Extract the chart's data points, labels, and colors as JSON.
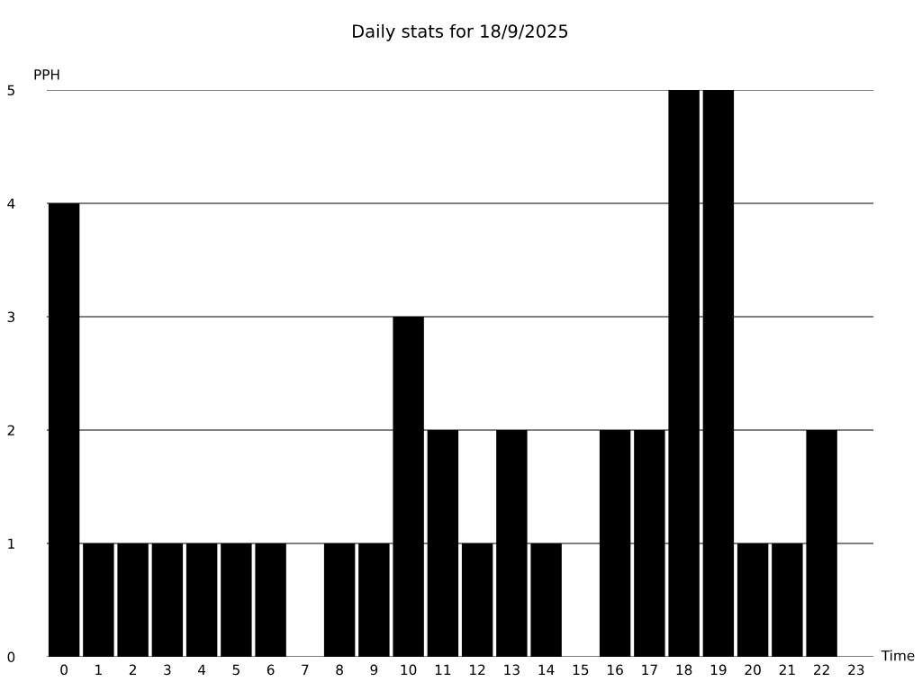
{
  "chart_data": {
    "type": "bar",
    "title": "Daily stats for 18/9/2025",
    "xlabel": "Time",
    "ylabel": "PPH",
    "categories": [
      "0",
      "1",
      "2",
      "3",
      "4",
      "5",
      "6",
      "7",
      "8",
      "9",
      "10",
      "11",
      "12",
      "13",
      "14",
      "15",
      "16",
      "17",
      "18",
      "19",
      "20",
      "21",
      "22",
      "23"
    ],
    "values": [
      4,
      1,
      1,
      1,
      1,
      1,
      1,
      0,
      1,
      1,
      3,
      2,
      1,
      2,
      1,
      0,
      2,
      2,
      5,
      5,
      1,
      1,
      2,
      0
    ],
    "color": "#000000",
    "ylim": [
      0,
      5
    ],
    "yticks": [
      0,
      1,
      2,
      3,
      4,
      5
    ],
    "grid": "y",
    "legend": false
  }
}
